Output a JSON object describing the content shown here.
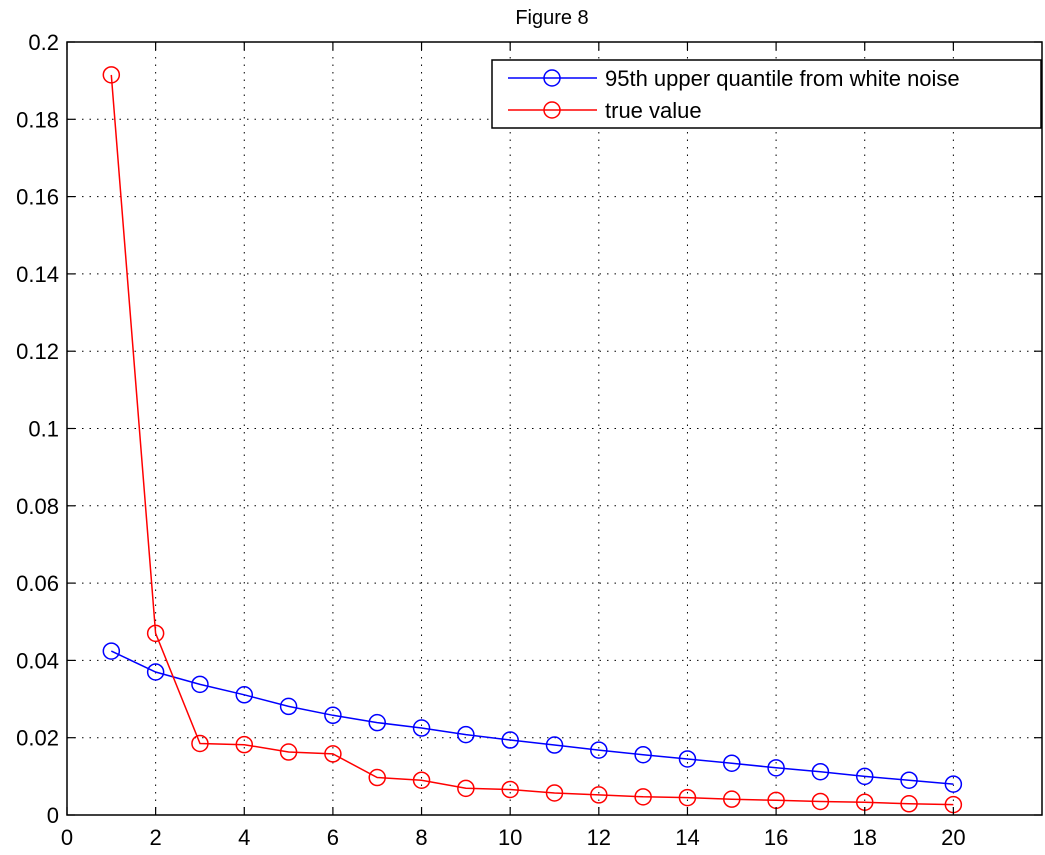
{
  "chart_data": {
    "type": "line",
    "title": "Figure 8",
    "xlabel": "",
    "ylabel": "",
    "xlim": [
      0,
      22
    ],
    "ylim": [
      0,
      0.2
    ],
    "xticks": [
      0,
      2,
      4,
      6,
      8,
      10,
      12,
      14,
      16,
      18,
      20
    ],
    "xtick_labels": [
      "0",
      "2",
      "4",
      "6",
      "8",
      "10",
      "12",
      "14",
      "16",
      "18",
      "20"
    ],
    "yticks": [
      0,
      0.02,
      0.04,
      0.06,
      0.08,
      0.1,
      0.12,
      0.14,
      0.16,
      0.18,
      0.2
    ],
    "ytick_labels": [
      "0",
      "0.02",
      "0.04",
      "0.06",
      "0.08",
      "0.1",
      "0.12",
      "0.14",
      "0.16",
      "0.18",
      "0.2"
    ],
    "grid": true,
    "legend_position": "top-right",
    "x": [
      1,
      2,
      3,
      4,
      5,
      6,
      7,
      8,
      9,
      10,
      11,
      12,
      13,
      14,
      15,
      16,
      17,
      18,
      19,
      20
    ],
    "series": [
      {
        "name": "95th upper quantile from white noise",
        "color": "#0000ff",
        "marker": "circle",
        "values": [
          0.0424,
          0.037,
          0.0338,
          0.0311,
          0.0281,
          0.0258,
          0.0239,
          0.0225,
          0.0208,
          0.0194,
          0.0181,
          0.0168,
          0.0156,
          0.0145,
          0.0134,
          0.0122,
          0.0112,
          0.01,
          0.009,
          0.008
        ]
      },
      {
        "name": "true value",
        "color": "#ff0000",
        "marker": "circle",
        "values": [
          0.1915,
          0.047,
          0.0185,
          0.0182,
          0.0163,
          0.0158,
          0.0097,
          0.009,
          0.0069,
          0.0066,
          0.0057,
          0.0052,
          0.0047,
          0.0045,
          0.0041,
          0.0038,
          0.0035,
          0.0033,
          0.0029,
          0.0027
        ]
      }
    ]
  }
}
